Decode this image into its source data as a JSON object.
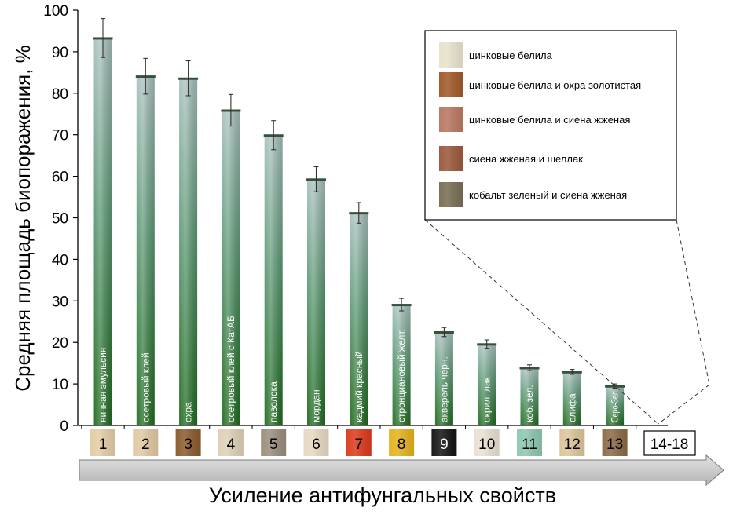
{
  "chart_data": {
    "type": "bar",
    "ylabel": "Средняя площадь биопоражения, %",
    "xlabel": "Усиление антифунгальных свойств",
    "ylim": [
      0,
      100
    ],
    "yticks": [
      0,
      10,
      20,
      30,
      40,
      50,
      60,
      70,
      80,
      90,
      100
    ],
    "categories": [
      "1",
      "2",
      "3",
      "4",
      "5",
      "6",
      "7",
      "8",
      "9",
      "10",
      "11",
      "12",
      "13"
    ],
    "bar_labels": [
      "яичная эмульсия",
      "осетровый клей",
      "охра",
      "осетровый клей с КатАБ",
      "паволока",
      "мордан",
      "кадмий красный",
      "стронциановый желт.",
      "акверель черн.",
      "окрил. лак",
      "коб. зел.",
      "олифа",
      "Серо-Зел."
    ],
    "values": [
      93.3,
      84.1,
      83.6,
      75.9,
      69.9,
      59.3,
      51.2,
      29.1,
      22.5,
      19.6,
      13.9,
      12.9,
      9.5
    ],
    "errors": [
      4.7,
      4.3,
      4.2,
      3.8,
      3.5,
      3.0,
      2.5,
      1.5,
      1.1,
      1.0,
      0.7,
      0.6,
      0.5
    ],
    "extra_category": "14-18",
    "category_swatch_colors": [
      "#e3cca6",
      "#e0c7a2",
      "#8a5a2c",
      "#ddd0b5",
      "#9a8e7c",
      "#e6d8c2",
      "#dc3a1c",
      "#e5b21c",
      "#141414",
      "#e8e0d2",
      "#8cc7ae",
      "#dcc498",
      "#8b6a44"
    ],
    "category_text_colors": [
      "#000000",
      "#000000",
      "#000000",
      "#000000",
      "#000000",
      "#000000",
      "#000000",
      "#000000",
      "#ffffff",
      "#000000",
      "#000000",
      "#000000",
      "#000000"
    ],
    "legend": {
      "placement": "top-right",
      "items": [
        {
          "label": "цинковые белила",
          "color": "#e6e2cb"
        },
        {
          "label": "цинковые белила и охра золотистая",
          "color": "#a15a2a"
        },
        {
          "label": "цинковые белила и сиена жженая",
          "color": "#b87862"
        },
        {
          "label": "сиена жженая и шеллак",
          "color": "#9b5a3e"
        },
        {
          "label": "кобальт зеленый и сиена жженая",
          "color": "#7a6e55"
        }
      ]
    },
    "colors": {
      "bar_top": "#a9c1bf",
      "bar_mid": "#5e9a76",
      "bar_bottom": "#1f6b1e",
      "arrow": "#c8c8c8"
    }
  }
}
